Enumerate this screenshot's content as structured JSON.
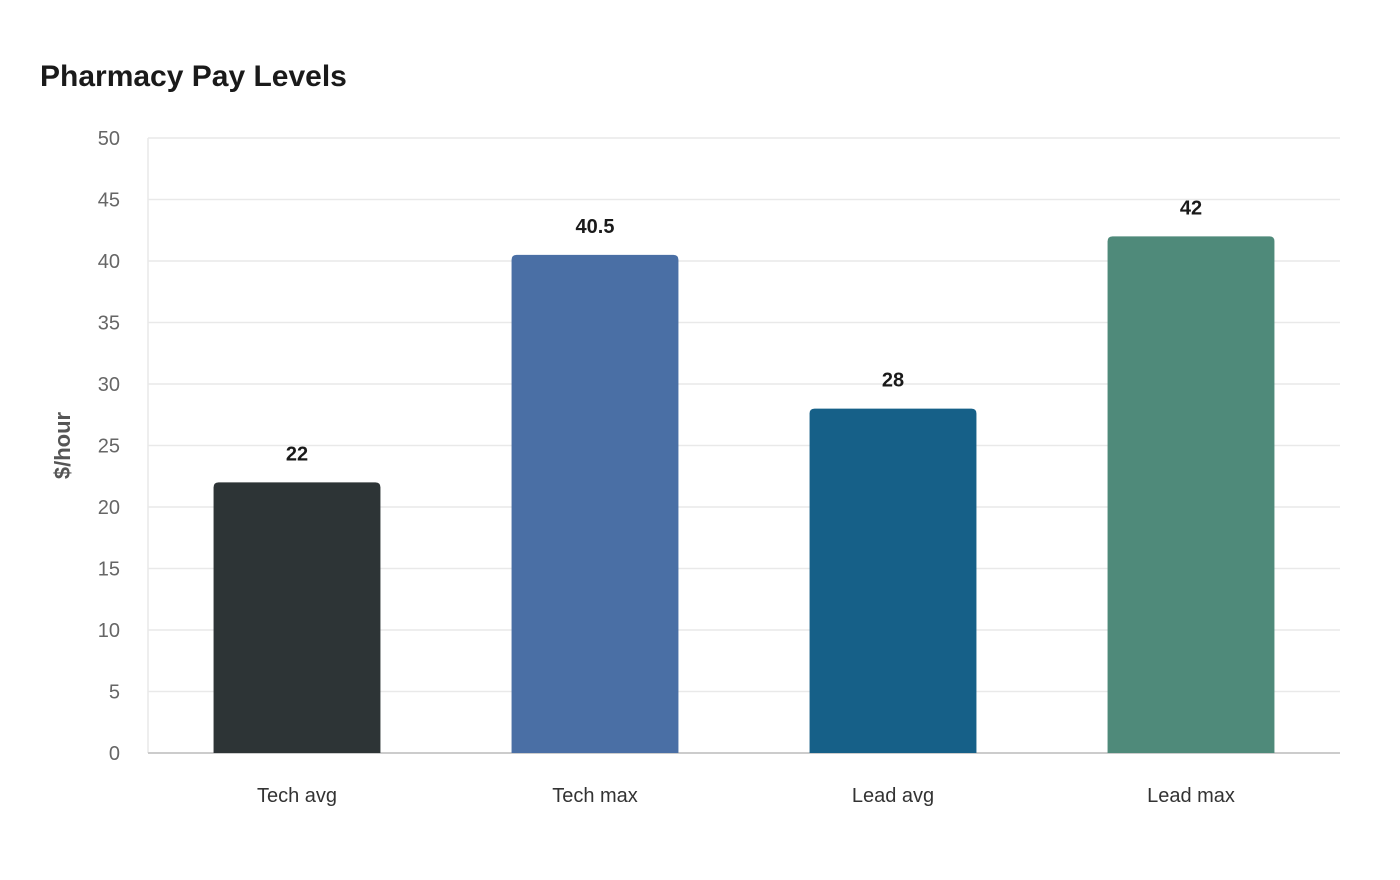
{
  "chart_data": {
    "type": "bar",
    "title": "Pharmacy Pay Levels",
    "xlabel": "",
    "ylabel": "$/hour",
    "categories": [
      "Tech avg",
      "Tech max",
      "Lead avg",
      "Lead max"
    ],
    "values": [
      22,
      40.5,
      28,
      42
    ],
    "value_labels": [
      "22",
      "40.5",
      "28",
      "42"
    ],
    "colors": [
      "#2d3436",
      "#4a6fa5",
      "#166088",
      "#4f8a7a"
    ],
    "ylim": [
      0,
      50
    ],
    "yticks": [
      0,
      5,
      10,
      15,
      20,
      25,
      30,
      35,
      40,
      45,
      50
    ],
    "grid": true,
    "legend": "none",
    "gridline_color": "#e9e9e9",
    "axis_color": "#cccccc"
  }
}
